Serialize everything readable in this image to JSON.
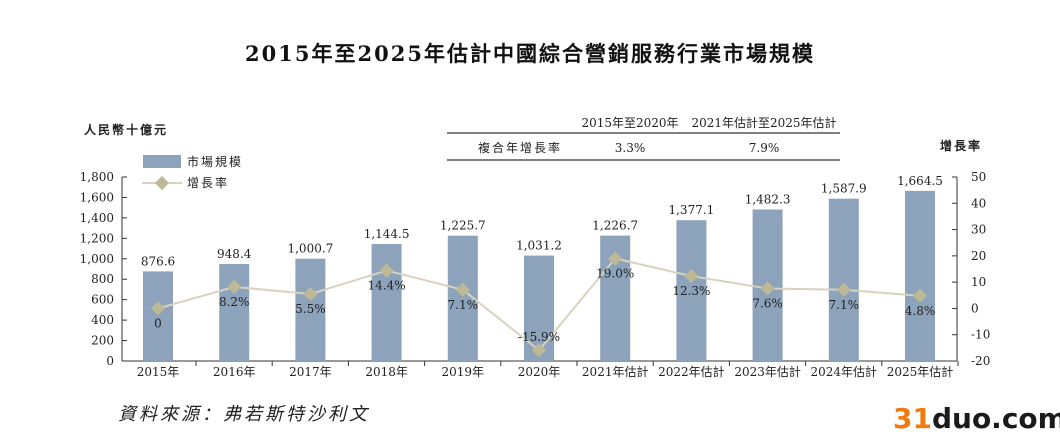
{
  "title": "2015年至2025年估計中國綜合營銷服務行業市場規模",
  "source": "資料來源：弗若斯特沙利文",
  "watermark": "31duo.com",
  "cagr_table": {
    "headers": [
      "2015年至2020年",
      "2021年估計至2025年估計"
    ],
    "row_label": "複合年增長率",
    "values": [
      "3.3%",
      "7.9%"
    ]
  },
  "chart_data": {
    "type": "bar",
    "categories": [
      "2015年",
      "2016年",
      "2017年",
      "2018年",
      "2019年",
      "2020年",
      "2021年估計",
      "2022年估計",
      "2023年估計",
      "2024年估計",
      "2025年估計"
    ],
    "series": [
      {
        "name": "市場規模",
        "type": "bar",
        "axis": "left",
        "color": "#8ca3bb",
        "values": [
          876.6,
          948.4,
          1000.7,
          1144.5,
          1225.7,
          1031.2,
          1226.7,
          1377.1,
          1482.3,
          1587.9,
          1664.5
        ],
        "labels": [
          "876.6",
          "948.4",
          "1,000.7",
          "1,144.5",
          "1,225.7",
          "1,031.2",
          "1,226.7",
          "1,377.1",
          "1,482.3",
          "1,587.9",
          "1,664.5"
        ]
      },
      {
        "name": "增長率",
        "type": "line",
        "axis": "right",
        "color": "#d8d3bf",
        "marker_color": "#bdb896",
        "values": [
          0,
          8.2,
          5.5,
          14.4,
          7.1,
          -15.9,
          19.0,
          12.3,
          7.6,
          7.1,
          4.8
        ],
        "labels": [
          "0",
          "8.2%",
          "5.5%",
          "14.4%",
          "7.1%",
          "-15.9%",
          "19.0%",
          "12.3%",
          "7.6%",
          "7.1%",
          "4.8%"
        ]
      }
    ],
    "ylabel": "人民幣十億元",
    "y2label": "增長率",
    "ylim": [
      0,
      1800
    ],
    "y2lim": [
      -20,
      50
    ],
    "yticks": [
      "0",
      "200",
      "400",
      "600",
      "800",
      "1,000",
      "1,200",
      "1,400",
      "1,600",
      "1,800"
    ],
    "y2ticks": [
      "-20",
      "-10",
      "0",
      "10",
      "20",
      "30",
      "40",
      "50"
    ],
    "grid": false,
    "legend": "top-left"
  }
}
